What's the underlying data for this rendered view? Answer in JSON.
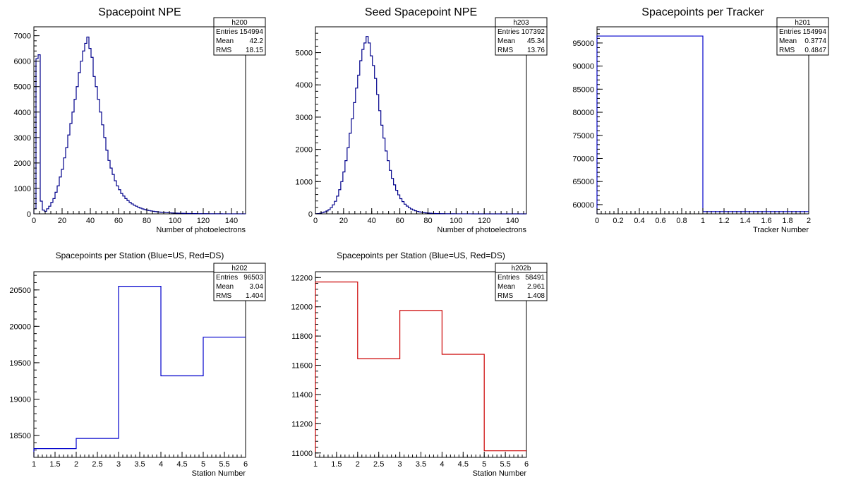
{
  "chart_data": [
    {
      "type": "histogram",
      "title": "Spacepoint NPE",
      "xlabel": "Number of photoelectrons",
      "ylabel": "",
      "xlim": [
        0,
        150
      ],
      "ylim": [
        0,
        7350
      ],
      "x_ticks": [
        0,
        20,
        40,
        60,
        80,
        100,
        120,
        140
      ],
      "y_ticks": [
        0,
        1000,
        2000,
        3000,
        4000,
        5000,
        6000,
        7000
      ],
      "line_color": "#00008b",
      "stats": {
        "name": "h200",
        "entries": "154994",
        "mean": "42.2",
        "rms": "18.15"
      },
      "bin_width": 1.5,
      "values": [
        200,
        6100,
        6250,
        500,
        150,
        100,
        200,
        300,
        450,
        600,
        850,
        1100,
        1450,
        1750,
        2200,
        2600,
        3100,
        3550,
        4000,
        4500,
        5000,
        5550,
        6000,
        6400,
        6700,
        6950,
        6500,
        6150,
        5400,
        5000,
        4500,
        4000,
        3500,
        3000,
        2500,
        2100,
        1800,
        1550,
        1300,
        1100,
        950,
        800,
        700,
        600,
        520,
        450,
        390,
        340,
        300,
        260,
        225,
        195,
        170,
        150,
        130,
        115,
        100,
        90,
        80,
        70,
        60,
        55,
        50,
        45,
        40,
        35,
        32,
        28,
        25,
        22,
        20,
        18,
        16,
        14,
        12,
        11,
        10,
        9,
        8,
        7,
        6,
        6,
        5,
        5,
        4,
        4,
        3,
        3,
        3,
        2,
        2,
        2,
        2,
        2,
        1,
        1,
        1,
        1,
        1,
        1
      ]
    },
    {
      "type": "histogram",
      "title": "Seed Spacepoint NPE",
      "xlabel": "Number of photoelectrons",
      "ylabel": "",
      "xlim": [
        0,
        150
      ],
      "ylim": [
        0,
        5800
      ],
      "x_ticks": [
        0,
        20,
        40,
        60,
        80,
        100,
        120,
        140
      ],
      "y_ticks": [
        0,
        1000,
        2000,
        3000,
        4000,
        5000
      ],
      "line_color": "#00008b",
      "stats": {
        "name": "h203",
        "entries": "107392",
        "mean": "45.34",
        "rms": "13.76"
      },
      "bin_width": 1.5,
      "values": [
        5,
        10,
        20,
        40,
        60,
        90,
        130,
        190,
        280,
        390,
        550,
        750,
        1000,
        1300,
        1650,
        2050,
        2500,
        2950,
        3450,
        3900,
        4300,
        4750,
        5100,
        5300,
        5500,
        5300,
        4900,
        4600,
        4200,
        3700,
        3200,
        2750,
        2350,
        1950,
        1650,
        1350,
        1100,
        900,
        730,
        590,
        470,
        380,
        300,
        240,
        190,
        150,
        120,
        95,
        75,
        60,
        48,
        38,
        30,
        24,
        19,
        15,
        12,
        10,
        8,
        6,
        5,
        4,
        3,
        3,
        2,
        2,
        1,
        1,
        1,
        1,
        1,
        1,
        1,
        1,
        0,
        0,
        0,
        0,
        0,
        0,
        0,
        0,
        0,
        0,
        0,
        0,
        0,
        0,
        0,
        0,
        0,
        0,
        0,
        0,
        0,
        0,
        0,
        0,
        0,
        0
      ]
    },
    {
      "type": "histogram",
      "title": "Spacepoints per Tracker",
      "xlabel": "Tracker Number",
      "ylabel": "",
      "xlim": [
        0,
        2
      ],
      "ylim": [
        58000,
        98500
      ],
      "x_ticks": [
        0,
        0.2,
        0.4,
        0.6,
        0.8,
        1,
        1.2,
        1.4,
        1.6,
        1.8,
        2
      ],
      "y_ticks": [
        60000,
        65000,
        70000,
        75000,
        80000,
        85000,
        90000,
        95000
      ],
      "line_color": "#0000cc",
      "stats": {
        "name": "h201",
        "entries": "154994",
        "mean": "0.3774",
        "rms": "0.4847"
      },
      "bin_width": 1,
      "values": [
        96503,
        58491
      ]
    },
    {
      "type": "histogram",
      "title": "Spacepoints per Station (Blue=US, Red=DS)",
      "xlabel": "Station Number",
      "ylabel": "",
      "xlim": [
        1,
        6
      ],
      "ylim": [
        18200,
        20750
      ],
      "x_ticks": [
        1,
        1.5,
        2,
        2.5,
        3,
        3.5,
        4,
        4.5,
        5,
        5.5,
        6
      ],
      "y_ticks": [
        18500,
        19000,
        19500,
        20000,
        20500
      ],
      "line_color": "#0000cc",
      "stats": {
        "name": "h202",
        "entries": "96503",
        "mean": "3.04",
        "rms": "1.404"
      },
      "bin_width": 1,
      "values": [
        18320,
        18460,
        20550,
        19320,
        19850
      ]
    },
    {
      "type": "histogram",
      "title": "Spacepoints per Station (Blue=US, Red=DS)",
      "xlabel": "Station Number",
      "ylabel": "",
      "xlim": [
        1,
        6
      ],
      "ylim": [
        10970,
        12240
      ],
      "x_ticks": [
        1,
        1.5,
        2,
        2.5,
        3,
        3.5,
        4,
        4.5,
        5,
        5.5,
        6
      ],
      "y_ticks": [
        11000,
        11200,
        11400,
        11600,
        11800,
        12000,
        12200
      ],
      "line_color": "#cc0000",
      "stats": {
        "name": "h202b",
        "entries": "58491",
        "mean": "2.961",
        "rms": "1.408"
      },
      "bin_width": 1,
      "values": [
        12170,
        11645,
        11975,
        11675,
        11015
      ]
    }
  ],
  "stat_labels": {
    "entries": "Entries",
    "mean": "Mean",
    "rms": "RMS"
  }
}
